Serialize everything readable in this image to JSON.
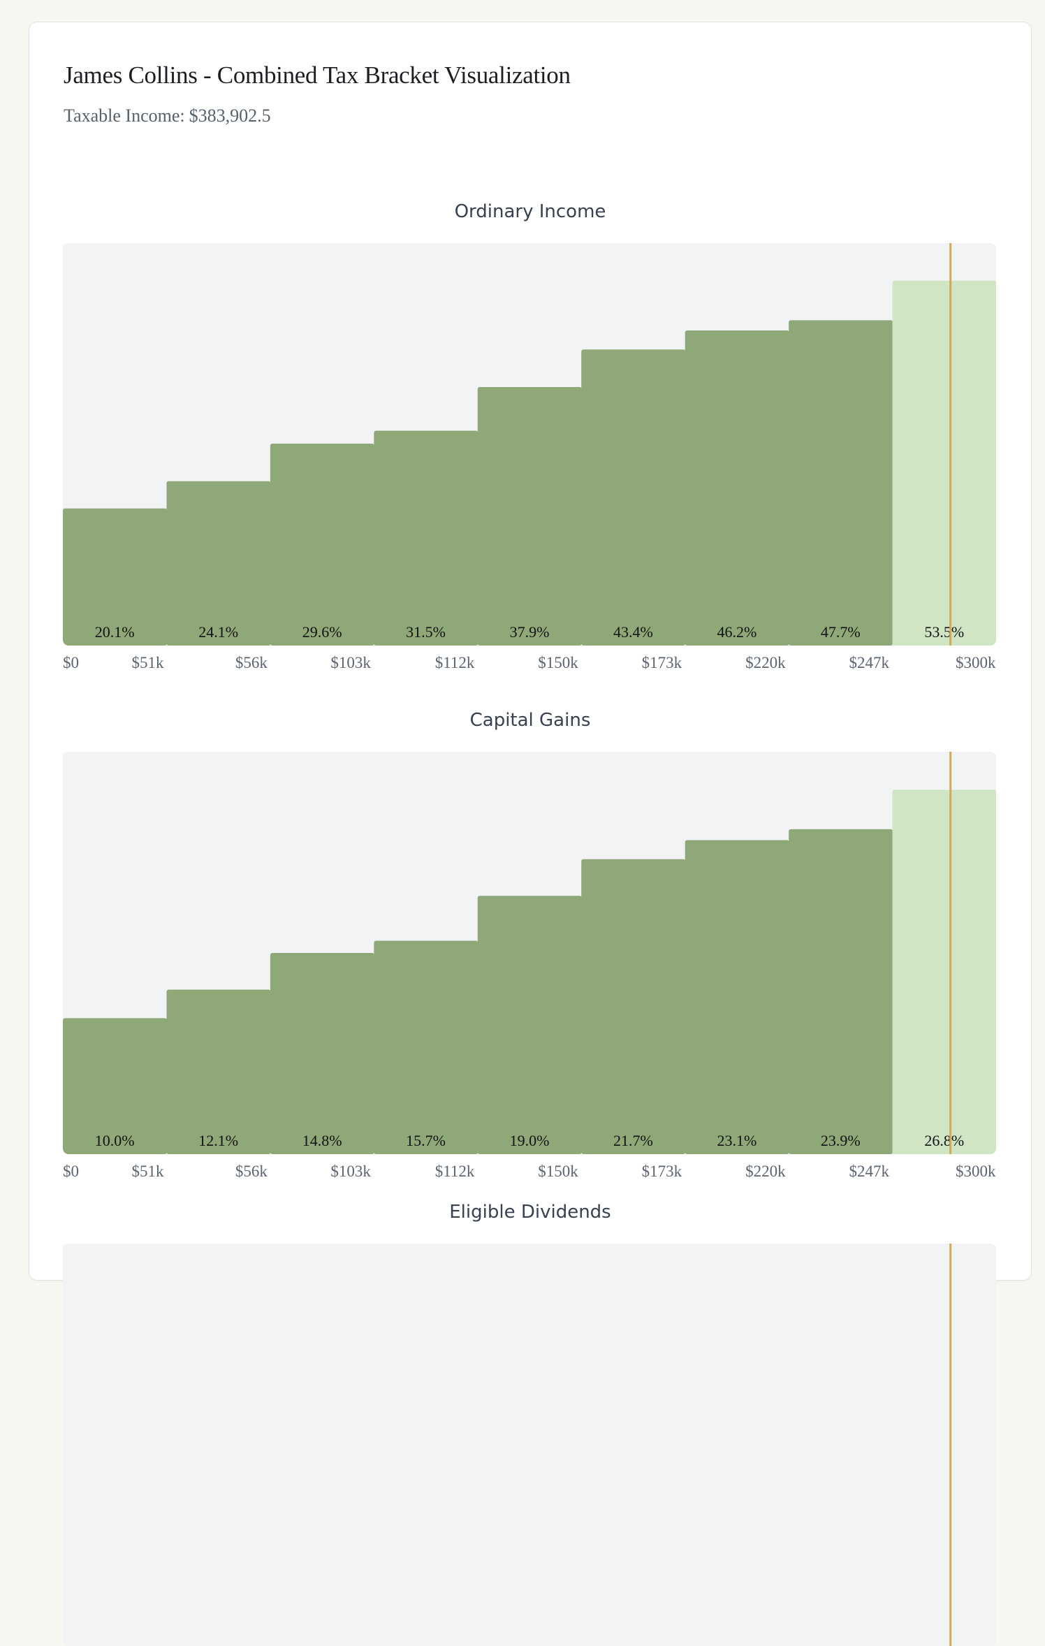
{
  "header": {
    "title": "James Collins - Combined Tax Bracket Visualization",
    "taxable_income_label": "Taxable Income:",
    "taxable_income_value": "$383,902.5"
  },
  "colors": {
    "filled_bracket": "#8fa878",
    "current_bracket": "#cfe5c4",
    "chart_background": "#f2f3f5",
    "income_marker": "#d4aa5a",
    "page_background": "#f5f7f1"
  },
  "chart_data": [
    {
      "type": "bar",
      "title": "Ordinary Income",
      "categories": [
        "$0",
        "$51k",
        "$56k",
        "$103k",
        "$112k",
        "$150k",
        "$173k",
        "$220k",
        "$247k"
      ],
      "values": [
        20.1,
        24.1,
        29.6,
        31.5,
        37.9,
        43.4,
        46.2,
        47.7,
        53.5
      ],
      "value_labels": [
        "20.1%",
        "24.1%",
        "29.6%",
        "31.5%",
        "37.9%",
        "43.4%",
        "46.2%",
        "47.7%",
        "53.5%"
      ],
      "x_ticks": [
        "$0",
        "$51k",
        "$56k",
        "$103k",
        "$112k",
        "$150k",
        "$173k",
        "$220k",
        "$247k",
        "$300k"
      ],
      "current_bracket_index": 8,
      "income_marker_fraction": 0.56,
      "ylim": [
        0,
        59
      ],
      "unit": "%",
      "grid": false,
      "legend": "none"
    },
    {
      "type": "bar",
      "title": "Capital Gains",
      "categories": [
        "$0",
        "$51k",
        "$56k",
        "$103k",
        "$112k",
        "$150k",
        "$173k",
        "$220k",
        "$247k"
      ],
      "values": [
        10.0,
        12.1,
        14.8,
        15.7,
        19.0,
        21.7,
        23.1,
        23.9,
        26.8
      ],
      "value_labels": [
        "10.0%",
        "12.1%",
        "14.8%",
        "15.7%",
        "19.0%",
        "21.7%",
        "23.1%",
        "23.9%",
        "26.8%"
      ],
      "x_ticks": [
        "$0",
        "$51k",
        "$56k",
        "$103k",
        "$112k",
        "$150k",
        "$173k",
        "$220k",
        "$247k",
        "$300k"
      ],
      "current_bracket_index": 8,
      "income_marker_fraction": 0.56,
      "ylim": [
        0,
        29.6
      ],
      "unit": "%",
      "grid": false,
      "legend": "none"
    },
    {
      "type": "bar",
      "title": "Eligible Dividends",
      "categories": [],
      "values": [],
      "value_labels": [],
      "x_ticks": [],
      "current_bracket_index": 8,
      "income_marker_fraction": 0.56,
      "ylim": [
        0,
        59
      ],
      "unit": "%",
      "grid": false,
      "legend": "none"
    }
  ]
}
